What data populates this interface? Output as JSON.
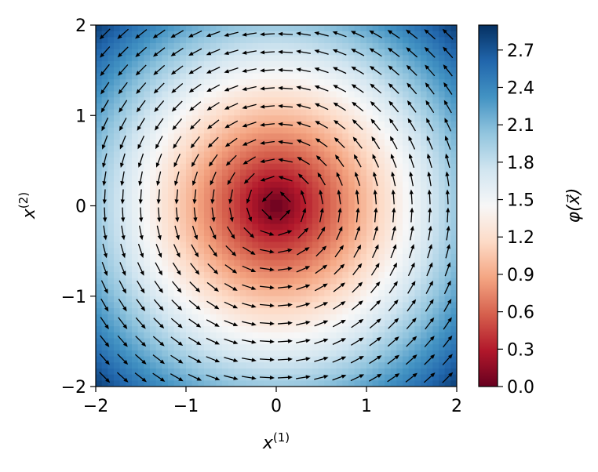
{
  "chart_data": {
    "type": "heatmap",
    "subtype": "scalar field with vector field overlay (quiver)",
    "xlabel": "x",
    "xlabel_sup": "(1)",
    "ylabel": "x",
    "ylabel_sup": "(2)",
    "xlim": [
      -2,
      2
    ],
    "ylim": [
      -2,
      2
    ],
    "xticks": [
      -2,
      -1,
      0,
      1,
      2
    ],
    "yticks": [
      -2,
      -1,
      0,
      1,
      2
    ],
    "xtick_labels": [
      "−2",
      "−1",
      "0",
      "1",
      "2"
    ],
    "ytick_labels": [
      "−2",
      "−1",
      "0",
      "1",
      "2"
    ],
    "field": "phi = sqrt(x1^2 + x2^2)",
    "vector_field": "rotation about origin (counter-clockwise), unit-length arrows",
    "quiver_grid": {
      "n": 20,
      "range": [
        -1.9,
        1.9
      ]
    },
    "colormap": "RdBu",
    "colorbar": {
      "label": "φ(x⃗)",
      "range": [
        0.0,
        2.9
      ],
      "ticks": [
        0.0,
        0.3,
        0.6,
        0.9,
        1.2,
        1.5,
        1.8,
        2.1,
        2.4,
        2.7
      ],
      "tick_labels": [
        "0.0",
        "0.3",
        "0.6",
        "0.9",
        "1.2",
        "1.5",
        "1.8",
        "2.1",
        "2.4",
        "2.7"
      ]
    },
    "grid": false,
    "legend": "none",
    "colors": {
      "low": "#67001f",
      "mid": "#f7f7f7",
      "high": "#053061",
      "arrow": "#000000"
    }
  }
}
